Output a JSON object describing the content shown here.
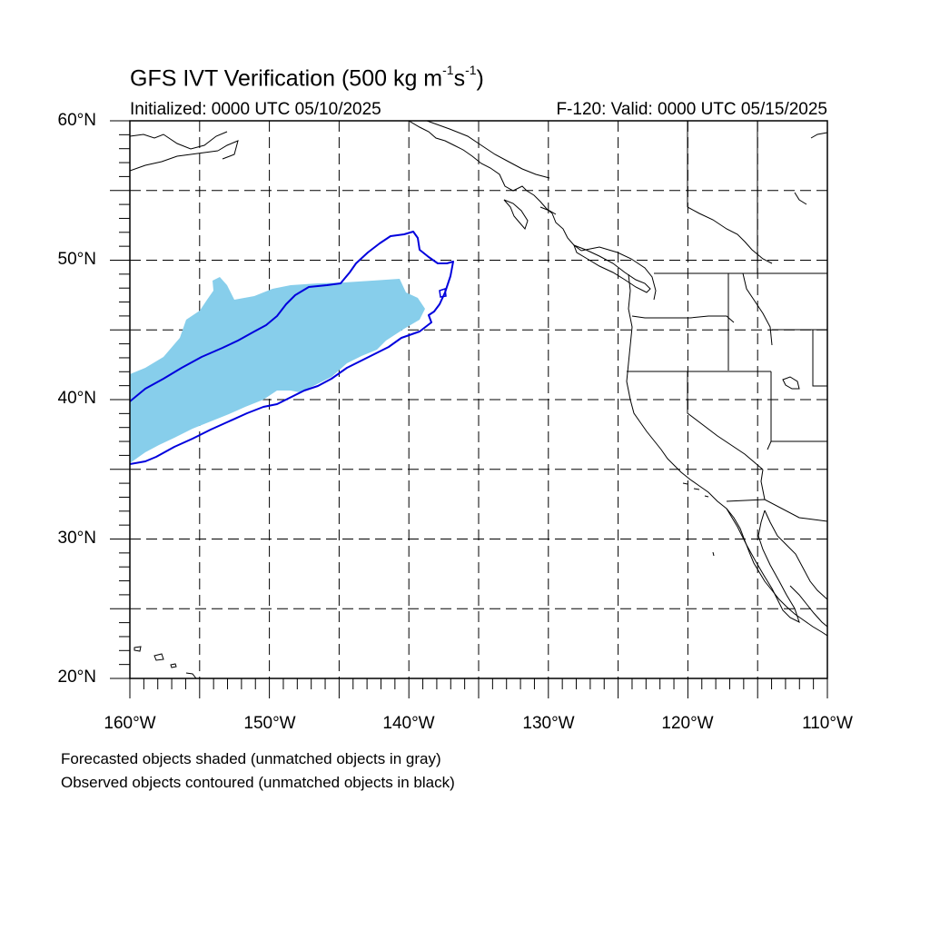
{
  "title": {
    "main": "GFS IVT Verification (500 kg m",
    "sup1": "-1",
    "mid": "s",
    "sup2": "-1",
    "end": ")"
  },
  "init_label": "Initialized: 0000 UTC 05/10/2025",
  "valid_label": "F-120: Valid: 0000 UTC 05/15/2025",
  "map": {
    "lon_range": [
      -160,
      -110
    ],
    "lat_range": [
      20,
      60
    ],
    "lat_labels": [
      "20°N",
      "30°N",
      "40°N",
      "50°N",
      "60°N"
    ],
    "lon_labels": [
      "160°W",
      "150°W",
      "140°W",
      "130°W",
      "120°W",
      "110°W"
    ],
    "grid_interval_deg": 5,
    "grid_style": "dashed",
    "forecast_fill_color": "#87ceeb",
    "observed_contour_color": "#0000dd",
    "coastline_color": "#000000"
  },
  "legend": {
    "line1": "Forecasted objects shaded (unmatched objects in gray)",
    "line2": "Observed objects contoured (unmatched objects in black)"
  }
}
